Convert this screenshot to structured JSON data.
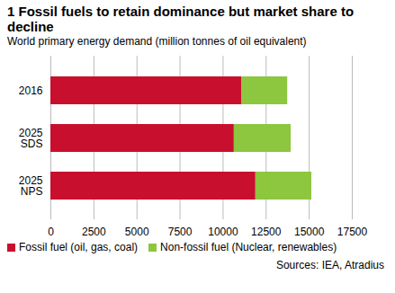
{
  "chart_data": {
    "type": "bar",
    "title": "1 Fossil fuels to retain dominance but market share to decline",
    "subtitle": "World primary energy demand (million tonnes of oil equivalent)",
    "caption": "Sources: IEA, Atradius",
    "categories": [
      "2016",
      "2025\nSDS",
      "2025\nNPS"
    ],
    "series": [
      {
        "name": "Fossil fuel (oil, gas, coal)",
        "color": "#c8102e",
        "values": [
          11100,
          10650,
          11900
        ]
      },
      {
        "name": "Non-fossil fuel (Nuclear, renewables)",
        "color": "#8dc63f",
        "values": [
          2650,
          3300,
          3250
        ]
      }
    ],
    "xlim": [
      0,
      17500
    ],
    "xticks": [
      0,
      2500,
      5000,
      7500,
      10000,
      12500,
      15000,
      17500
    ],
    "orientation": "horizontal",
    "stacked": true,
    "grid": true,
    "legend": "bottom"
  }
}
